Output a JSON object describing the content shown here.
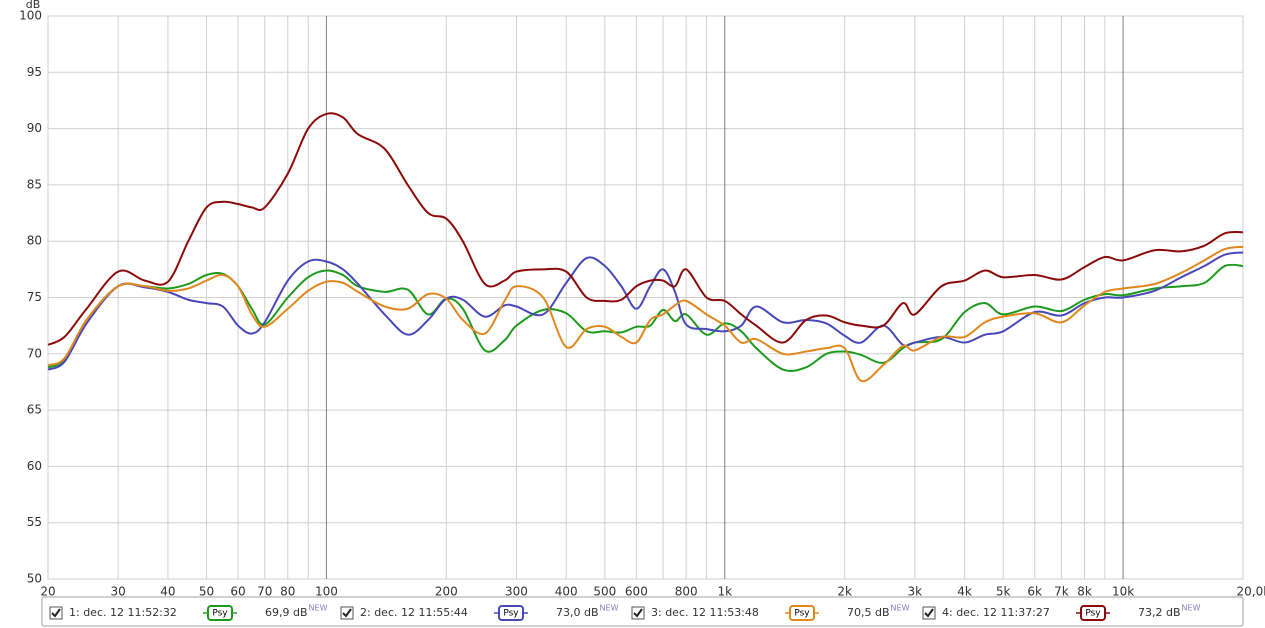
{
  "chart_data": {
    "type": "line",
    "ylabel": "dB",
    "xscale": "log",
    "grid": true,
    "xlim": [
      20,
      20000
    ],
    "ylim": [
      50,
      100
    ],
    "yticks": [
      50,
      55,
      60,
      65,
      70,
      75,
      80,
      85,
      90,
      95,
      100
    ],
    "xticks": [
      20,
      30,
      40,
      50,
      60,
      70,
      80,
      {
        "value": 90,
        "label": null
      },
      100,
      200,
      300,
      400,
      500,
      600,
      {
        "value": 700,
        "label": null
      },
      800,
      {
        "value": 900,
        "label": null
      },
      {
        "value": 1000,
        "label": "1k"
      },
      {
        "value": 2000,
        "label": "2k"
      },
      {
        "value": 3000,
        "label": "3k"
      },
      {
        "value": 4000,
        "label": "4k"
      },
      {
        "value": 5000,
        "label": "5k"
      },
      {
        "value": 6000,
        "label": "6k"
      },
      {
        "value": 7000,
        "label": "7k"
      },
      {
        "value": 8000,
        "label": "8k"
      },
      {
        "value": 9000,
        "label": null
      },
      {
        "value": 10000,
        "label": "10k"
      },
      {
        "value": 20000,
        "label": "20,0kHz"
      }
    ],
    "x": [
      20,
      22,
      25,
      30,
      35,
      40,
      45,
      50,
      55,
      60,
      65,
      70,
      80,
      90,
      100,
      110,
      120,
      140,
      160,
      180,
      200,
      220,
      250,
      280,
      300,
      350,
      400,
      450,
      500,
      550,
      600,
      650,
      700,
      750,
      800,
      900,
      1000,
      1100,
      1200,
      1400,
      1600,
      1800,
      2000,
      2200,
      2500,
      2800,
      3000,
      3500,
      4000,
      4500,
      5000,
      6000,
      7000,
      8000,
      9000,
      10000,
      12000,
      14000,
      16000,
      18000,
      20000
    ],
    "series": [
      {
        "name": "1: dec. 12 11:52:32",
        "color": "#1e9a1e",
        "tag": "Psy",
        "level": "69,9 dB",
        "note": "NEW",
        "values": [
          68.8,
          69.5,
          73,
          76,
          76,
          75.8,
          76.2,
          77,
          77.1,
          76,
          74,
          72.6,
          75,
          76.8,
          77.4,
          77,
          76,
          75.5,
          75.7,
          73.5,
          74.9,
          74,
          70.3,
          71.2,
          72.5,
          73.9,
          73.6,
          72,
          72,
          71.9,
          72.4,
          72.5,
          73.9,
          72.9,
          73.5,
          71.7,
          72.7,
          72,
          70.5,
          68.6,
          68.8,
          70,
          70.2,
          69.9,
          69.2,
          70.5,
          71,
          71.3,
          73.7,
          74.5,
          73.5,
          74.2,
          73.8,
          74.8,
          75.3,
          75.2,
          75.8,
          76,
          76.3,
          77.8,
          77.8
        ]
      },
      {
        "name": "2: dec. 12 11:55:44",
        "color": "#4848b8",
        "tag": "Psy",
        "level": "73,0 dB",
        "note": "NEW",
        "values": [
          68.6,
          69.3,
          72.7,
          76,
          75.9,
          75.5,
          74.8,
          74.5,
          74.2,
          72.5,
          71.8,
          72.8,
          76.5,
          78.2,
          78.2,
          77.5,
          76.2,
          73.5,
          71.7,
          73,
          74.9,
          74.8,
          73.3,
          74.3,
          74.2,
          73.5,
          76.3,
          78.5,
          77.8,
          76,
          74,
          76,
          77.5,
          75.5,
          72.6,
          72.2,
          72,
          72.5,
          74.2,
          72.8,
          73,
          72.7,
          71.6,
          71,
          72.5,
          70.8,
          71,
          71.5,
          71,
          71.7,
          72,
          73.7,
          73.4,
          74.5,
          75,
          75,
          75.6,
          76.8,
          77.8,
          78.8,
          79
        ]
      },
      {
        "name": "3: dec. 12 11:53:48",
        "color": "#e0881e",
        "tag": "Psy",
        "level": "70,5 dB",
        "note": "NEW",
        "values": [
          69,
          69.6,
          73,
          76,
          76,
          75.6,
          75.8,
          76.5,
          77,
          76,
          73.5,
          72.4,
          74,
          75.6,
          76.4,
          76.3,
          75.5,
          74.2,
          74,
          75.3,
          74.9,
          73,
          71.8,
          74.7,
          76,
          75,
          70.6,
          72.2,
          72.4,
          71.5,
          71,
          73,
          73.5,
          74.3,
          74.7,
          73.5,
          72.5,
          71,
          71.3,
          70,
          70.2,
          70.5,
          70.5,
          67.6,
          69,
          70.7,
          70.3,
          71.5,
          71.5,
          72.8,
          73.3,
          73.6,
          72.8,
          74.3,
          75.5,
          75.8,
          76.2,
          77.2,
          78.3,
          79.3,
          79.5
        ]
      },
      {
        "name": "4: dec. 12 11:37:27",
        "color": "#8b0a0a",
        "tag": "Psy",
        "level": "73,2 dB",
        "note": "NEW",
        "values": [
          70.8,
          71.5,
          74,
          77.3,
          76.5,
          76.4,
          80,
          83,
          83.5,
          83.3,
          83,
          83,
          86,
          90,
          91.3,
          91,
          89.5,
          88.2,
          85,
          82.5,
          82,
          80,
          76.2,
          76.5,
          77.3,
          77.5,
          77.3,
          75,
          74.7,
          74.8,
          76,
          76.5,
          76.5,
          76,
          77.5,
          75,
          74.7,
          73.5,
          72.5,
          71,
          73,
          73.4,
          72.8,
          72.5,
          72.5,
          74.5,
          73.5,
          76,
          76.5,
          77.4,
          76.8,
          77,
          76.6,
          77.7,
          78.6,
          78.3,
          79.2,
          79.1,
          79.6,
          80.7,
          80.8
        ]
      }
    ]
  }
}
